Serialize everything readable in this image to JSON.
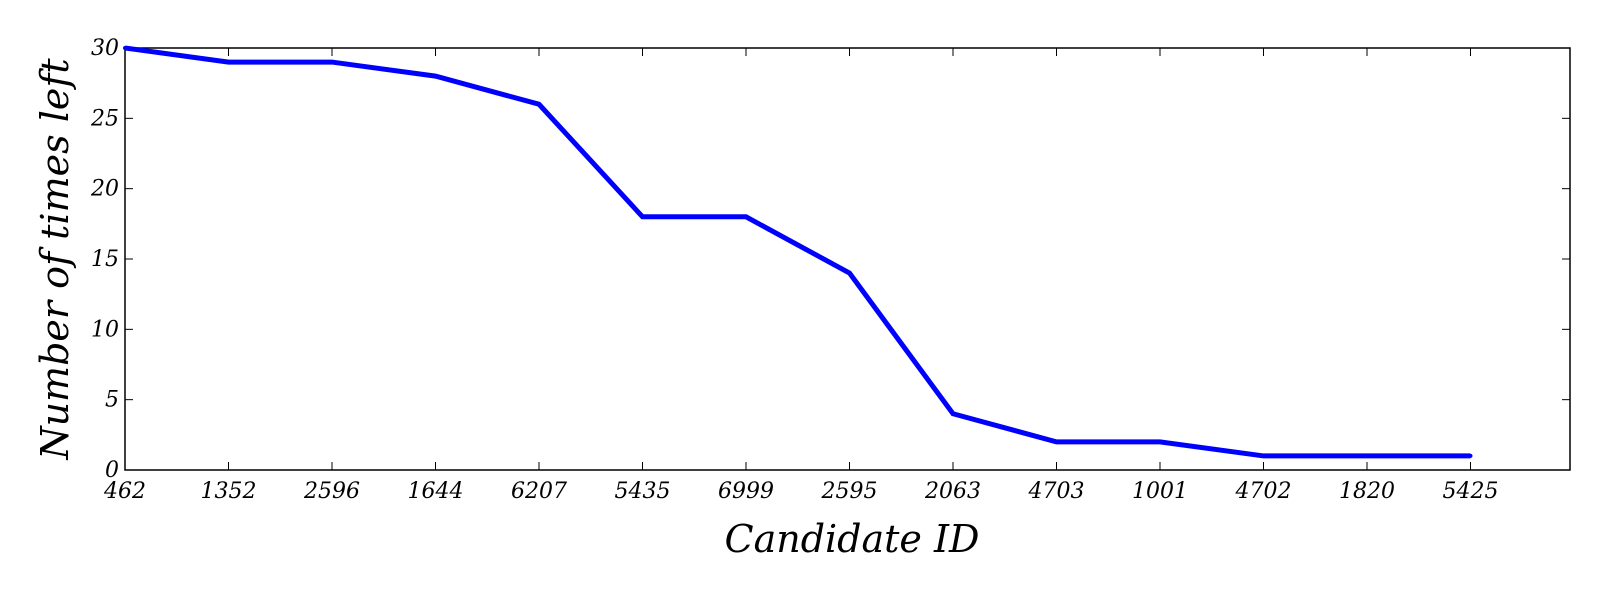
{
  "chart_data": {
    "type": "line",
    "title": "",
    "xlabel": "Candidate ID",
    "ylabel": "Number of times left",
    "categories": [
      "462",
      "1352",
      "2596",
      "1644",
      "6207",
      "5435",
      "6999",
      "2595",
      "2063",
      "4703",
      "1001",
      "4702",
      "1820",
      "5425"
    ],
    "series": [
      {
        "values": [
          30,
          29,
          29,
          28,
          26,
          18,
          18,
          14,
          4,
          2,
          2,
          1,
          1,
          1
        ]
      }
    ],
    "ylim": [
      0,
      30
    ],
    "yticks": [
      "0",
      "5",
      "10",
      "15",
      "20",
      "25",
      "30"
    ],
    "grid": false,
    "line_color": "#0000ff",
    "legend": "none"
  }
}
